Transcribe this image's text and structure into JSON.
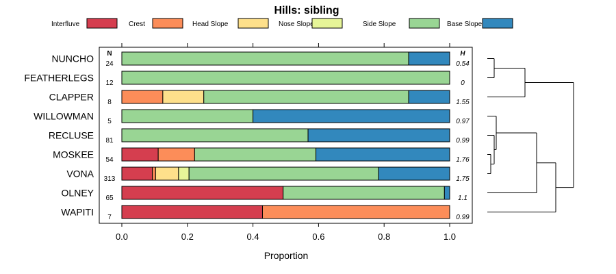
{
  "chart_data": {
    "type": "bar",
    "title": "Hills: sibling",
    "xlabel": "Proportion",
    "ylabel": "",
    "xlim": [
      0,
      1
    ],
    "xticks": [
      "0.0",
      "0.2",
      "0.4",
      "0.6",
      "0.8",
      "1.0"
    ],
    "n_header": "N",
    "h_header": "H",
    "legend": [
      {
        "name": "Interfluve",
        "color": "#D53E4F"
      },
      {
        "name": "Crest",
        "color": "#FC8D59"
      },
      {
        "name": "Head Slope",
        "color": "#FEE08B"
      },
      {
        "name": "Nose Slope",
        "color": "#E6F598"
      },
      {
        "name": "Side Slope",
        "color": "#99D594"
      },
      {
        "name": "Base Slope",
        "color": "#3288BD"
      }
    ],
    "categories": [
      "NUNCHO",
      "FEATHERLEGS",
      "CLAPPER",
      "WILLOWMAN",
      "RECLUSE",
      "MOSKEE",
      "VONA",
      "OLNEY",
      "WAPITI"
    ],
    "n": [
      "24",
      "12",
      "8",
      "5",
      "81",
      "54",
      "313",
      "65",
      "7"
    ],
    "h": [
      "0.54",
      "0",
      "1.55",
      "0.97",
      "0.99",
      "1.76",
      "1.75",
      "1.1",
      "0.99"
    ],
    "series": [
      {
        "name": "Interfluve",
        "values": [
          0,
          0,
          0,
          0,
          0,
          0.111,
          0.093,
          0.492,
          0.429
        ]
      },
      {
        "name": "Crest",
        "values": [
          0,
          0,
          0.125,
          0,
          0,
          0.111,
          0.01,
          0,
          0.571
        ]
      },
      {
        "name": "Head Slope",
        "values": [
          0,
          0,
          0.125,
          0,
          0,
          0,
          0.07,
          0,
          0
        ]
      },
      {
        "name": "Nose Slope",
        "values": [
          0,
          0,
          0,
          0,
          0,
          0,
          0.032,
          0,
          0
        ]
      },
      {
        "name": "Side Slope",
        "values": [
          0.875,
          1.0,
          0.625,
          0.4,
          0.568,
          0.37,
          0.578,
          0.492,
          0
        ]
      },
      {
        "name": "Base Slope",
        "values": [
          0.125,
          0,
          0.125,
          0.6,
          0.432,
          0.408,
          0.217,
          0.016,
          0
        ]
      }
    ],
    "dendrogram": {
      "merges": [
        {
          "a": "NUNCHO",
          "b": "FEATHERLEGS",
          "height": 0.1
        },
        {
          "a": "MOSKEE",
          "b": "VONA",
          "height": 0.05
        },
        {
          "a": "RECLUSE",
          "b": "m2",
          "height": 0.1
        },
        {
          "a": "WILLOWMAN",
          "b": "m3",
          "height": 0.13
        },
        {
          "a": "CLAPPER",
          "b": "m1",
          "height": 0.55
        },
        {
          "a": "m4",
          "b": "OLNEY",
          "height": 0.72
        },
        {
          "a": "m6",
          "b": "WAPITI",
          "height": 1.0
        },
        {
          "a": "m5",
          "b": "m7",
          "height": 1.26
        }
      ]
    }
  }
}
